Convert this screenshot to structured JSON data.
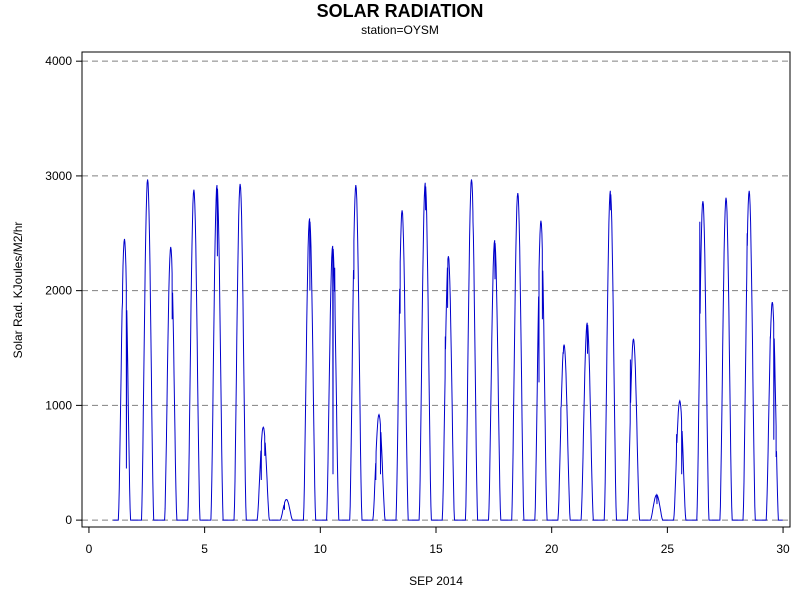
{
  "chart_data": {
    "type": "line",
    "title": "SOLAR RADIATION",
    "subtitle": "station=OYSM",
    "xlabel": "SEP 2014",
    "ylabel": "Solar Rad. KJoules/M2/hr",
    "xlim": [
      -0.3,
      30.3
    ],
    "ylim": [
      -60,
      4080
    ],
    "x_ticks": [
      0,
      5,
      10,
      15,
      20,
      25,
      30
    ],
    "y_ticks": [
      0,
      1000,
      2000,
      3000,
      4000
    ],
    "y_gridlines": [
      0,
      1000,
      2000,
      3000,
      4000
    ],
    "grid": "horizontal-dashed",
    "series": [
      {
        "color": "#0000cc",
        "daily_peaks": [
          {
            "day": 1,
            "peak": 2450,
            "dips": [
              [
                1.45,
                1900
              ],
              [
                1.62,
                450
              ]
            ]
          },
          {
            "day": 2,
            "peak": 2970,
            "dips": []
          },
          {
            "day": 3,
            "peak": 2380,
            "dips": [
              [
                3.35,
                730
              ],
              [
                3.6,
                1750
              ]
            ]
          },
          {
            "day": 4,
            "peak": 2880,
            "dips": []
          },
          {
            "day": 5,
            "peak": 2920,
            "dips": [
              [
                5.55,
                2300
              ]
            ]
          },
          {
            "day": 6,
            "peak": 2930,
            "dips": []
          },
          {
            "day": 7,
            "peak": 810,
            "dips": [
              [
                7.45,
                350
              ],
              [
                7.6,
                560
              ]
            ]
          },
          {
            "day": 8,
            "peak": 180,
            "dips": [
              [
                8.45,
                90
              ]
            ]
          },
          {
            "day": 9,
            "peak": 2630,
            "dips": [
              [
                9.55,
                2000
              ]
            ]
          },
          {
            "day": 10,
            "peak": 2390,
            "dips": [
              [
                10.55,
                400
              ],
              [
                10.62,
                2200
              ]
            ]
          },
          {
            "day": 11,
            "peak": 2920,
            "dips": [
              [
                11.45,
                2100
              ]
            ]
          },
          {
            "day": 12,
            "peak": 920,
            "dips": [
              [
                12.4,
                350
              ],
              [
                12.6,
                400
              ]
            ]
          },
          {
            "day": 13,
            "peak": 2700,
            "dips": [
              [
                13.45,
                1800
              ]
            ]
          },
          {
            "day": 14,
            "peak": 2940,
            "dips": [
              [
                14.55,
                2700
              ]
            ]
          },
          {
            "day": 15,
            "peak": 2300,
            "dips": [
              [
                15.4,
                1600
              ],
              [
                15.5,
                1850
              ]
            ]
          },
          {
            "day": 16,
            "peak": 2970,
            "dips": [
              [
                16.6,
                2600
              ]
            ]
          },
          {
            "day": 17,
            "peak": 2440,
            "dips": [
              [
                17.55,
                2100
              ]
            ]
          },
          {
            "day": 18,
            "peak": 2850,
            "dips": []
          },
          {
            "day": 19,
            "peak": 2610,
            "dips": [
              [
                19.45,
                1200
              ],
              [
                19.6,
                1750
              ]
            ]
          },
          {
            "day": 20,
            "peak": 1530,
            "dips": [
              [
                20.4,
                980
              ],
              [
                20.5,
                1450
              ]
            ]
          },
          {
            "day": 21,
            "peak": 1720,
            "dips": [
              [
                21.55,
                1450
              ]
            ]
          },
          {
            "day": 22,
            "peak": 2870,
            "dips": [
              [
                22.55,
                2700
              ]
            ]
          },
          {
            "day": 23,
            "peak": 1580,
            "dips": [
              [
                23.4,
                1400
              ]
            ]
          },
          {
            "day": 24,
            "peak": 220,
            "dips": [
              [
                24.55,
                140
              ]
            ]
          },
          {
            "day": 25,
            "peak": 1040,
            "dips": [
              [
                25.4,
                750
              ],
              [
                25.62,
                400
              ]
            ]
          },
          {
            "day": 26,
            "peak": 2780,
            "dips": [
              [
                26.4,
                2600
              ]
            ]
          },
          {
            "day": 27,
            "peak": 2810,
            "dips": []
          },
          {
            "day": 28,
            "peak": 2870,
            "dips": [
              [
                28.45,
                2500
              ]
            ]
          },
          {
            "day": 29,
            "peak": 1900,
            "dips": [
              [
                29.45,
                1600
              ],
              [
                29.6,
                700
              ],
              [
                29.7,
                550
              ]
            ]
          }
        ]
      }
    ]
  }
}
